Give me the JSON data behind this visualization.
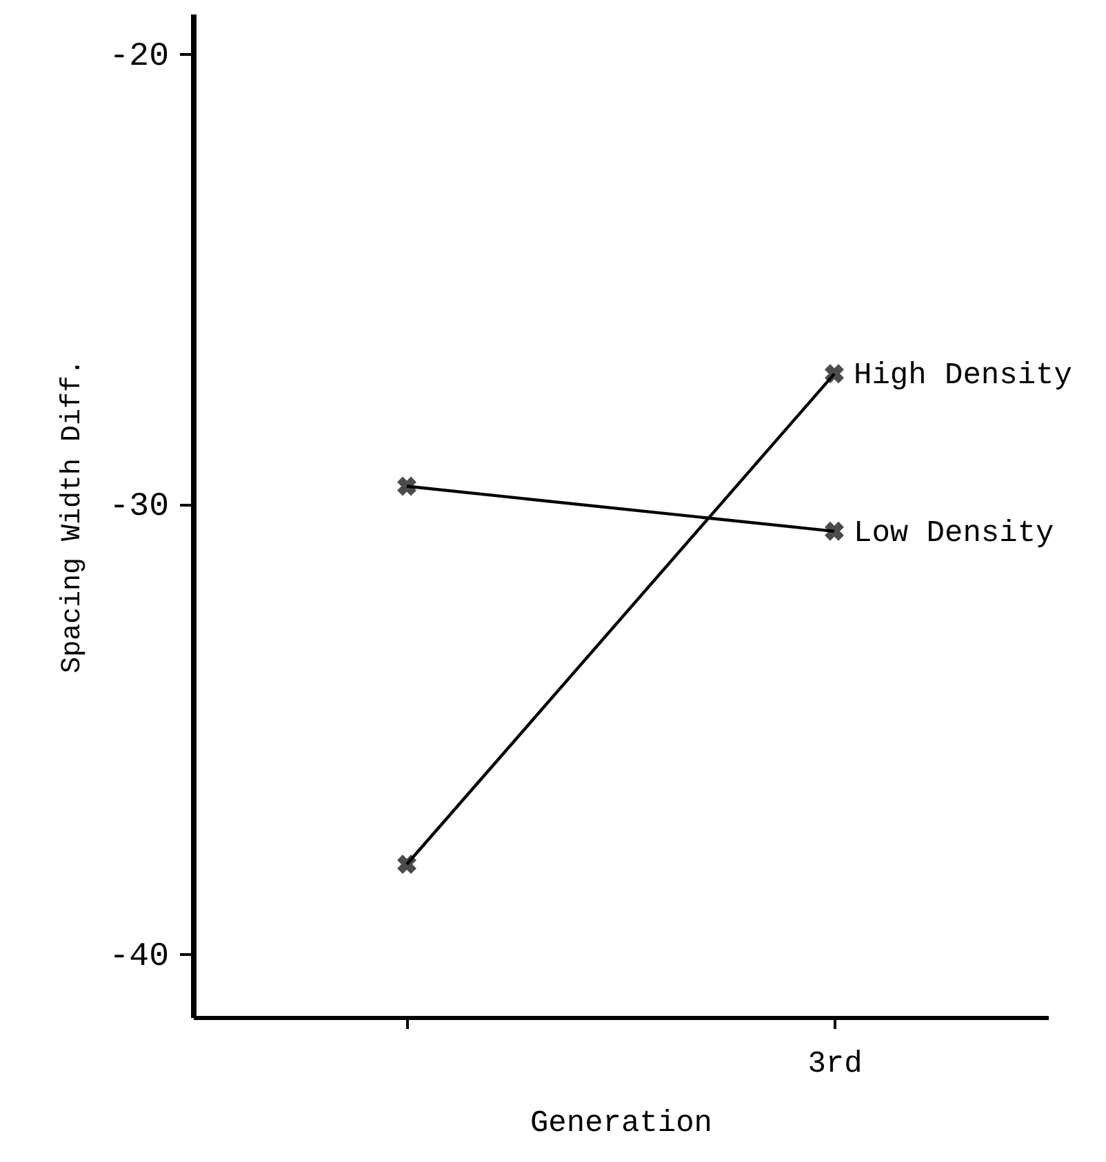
{
  "chart_data": {
    "type": "line",
    "xlabel": "Generation",
    "ylabel": "Spacing Width Diff.",
    "categories": [
      null,
      "3rd"
    ],
    "series": [
      {
        "name": "High Density",
        "color": "#000000",
        "values": [
          -38.0,
          -27.1
        ]
      },
      {
        "name": "Low Density",
        "color": "#000000",
        "values": [
          -29.6,
          -30.6
        ]
      }
    ],
    "ylim": [
      -41.4,
      -19.1
    ],
    "yticks": [
      -40,
      -30,
      -20
    ],
    "marker": "cross",
    "grid": false
  }
}
